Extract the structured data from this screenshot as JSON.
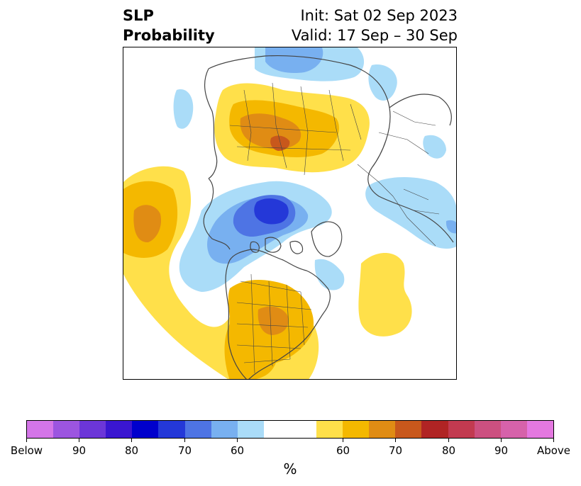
{
  "title": {
    "left_line1": "SLP",
    "left_line2": "Probability",
    "right_line1": "Init: Sat 02 Sep 2023",
    "right_line2": "Valid: 17 Sep – 30 Sep"
  },
  "colorbar": {
    "colors": [
      "#d475e8",
      "#9c55e0",
      "#6c36d8",
      "#3a16d0",
      "#0000cc",
      "#2438d8",
      "#4e74e4",
      "#78b0f0",
      "#aadcf8",
      "#ffffff",
      "#ffffff",
      "#ffe04a",
      "#f4b800",
      "#e08c14",
      "#c8581c",
      "#b02424",
      "#c23a50",
      "#cc5080",
      "#d662aa",
      "#e478e0"
    ],
    "tick_labels": [
      "Below",
      "90",
      "80",
      "70",
      "60",
      "60",
      "70",
      "80",
      "90",
      "Above"
    ],
    "unit": "%"
  },
  "legend_colors": {
    "below_60": "#aadcf8",
    "below_70": "#78b0f0",
    "below_80": "#4e74e4",
    "below_90": "#2438d8",
    "above_60": "#ffe04a",
    "above_70": "#f4b800",
    "above_80": "#e08c14",
    "above_90": "#c8581c"
  },
  "coastline_color": "#444444"
}
